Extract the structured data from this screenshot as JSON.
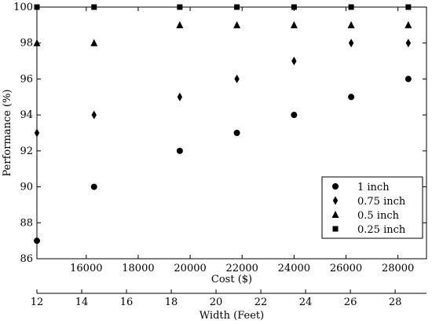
{
  "chart_data": {
    "type": "scatter",
    "title": "",
    "xlabel": "Cost ($)",
    "ylabel": "Performance (%)",
    "secondary_xlabel": "Width (Feet)",
    "xlim": [
      14100,
      29100
    ],
    "ylim": [
      86,
      100
    ],
    "x_ticks": [
      16000,
      18000,
      20000,
      22000,
      24000,
      26000,
      28000
    ],
    "y_ticks": [
      86,
      88,
      90,
      92,
      94,
      96,
      98,
      100
    ],
    "secondary_x_ticks": [
      12,
      14,
      16,
      18,
      20,
      22,
      24,
      26,
      28
    ],
    "secondary_xlim": [
      12,
      29.4
    ],
    "grid": false,
    "legend_position": "bottom-right",
    "series": [
      {
        "name": "1 inch",
        "marker": "circle",
        "points": [
          [
            14100,
            87
          ],
          [
            16300,
            90
          ],
          [
            19600,
            92
          ],
          [
            21800,
            93
          ],
          [
            24000,
            94
          ],
          [
            26200,
            95
          ],
          [
            28400,
            96
          ]
        ]
      },
      {
        "name": "0.75 inch",
        "marker": "diamond",
        "points": [
          [
            14100,
            93
          ],
          [
            16300,
            94
          ],
          [
            19600,
            95
          ],
          [
            21800,
            96
          ],
          [
            24000,
            97
          ],
          [
            26200,
            98
          ],
          [
            28400,
            98
          ]
        ]
      },
      {
        "name": "0.5 inch",
        "marker": "triangle",
        "points": [
          [
            14100,
            98
          ],
          [
            16300,
            98
          ],
          [
            19600,
            99
          ],
          [
            21800,
            99
          ],
          [
            24000,
            99
          ],
          [
            26200,
            99
          ],
          [
            28400,
            99
          ]
        ]
      },
      {
        "name": "0.25 inch",
        "marker": "square",
        "points": [
          [
            14100,
            100
          ],
          [
            16300,
            100
          ],
          [
            19600,
            100
          ],
          [
            21800,
            100
          ],
          [
            24000,
            100
          ],
          [
            26200,
            100
          ],
          [
            28400,
            100
          ]
        ]
      }
    ]
  }
}
